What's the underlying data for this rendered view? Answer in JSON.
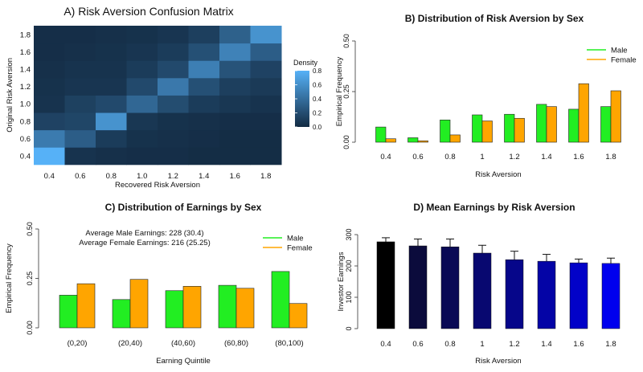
{
  "chart_data": [
    {
      "id": "A",
      "type": "heatmap",
      "title": "A) Risk Aversion Confusion Matrix",
      "xlabel": "Recovered Risk Aversion",
      "ylabel": "Original Risk Aversion",
      "x_ticks": [
        "0.4",
        "0.6",
        "0.8",
        "1.0",
        "1.2",
        "1.4",
        "1.6",
        "1.8"
      ],
      "y_ticks": [
        "0.4",
        "0.6",
        "0.8",
        "1.0",
        "1.2",
        "1.4",
        "1.6",
        "1.8"
      ],
      "legend_title": "Density",
      "legend_ticks": [
        "0.0",
        "0.2",
        "0.4",
        "0.6",
        "0.8"
      ],
      "value_range": [
        0,
        0.8
      ],
      "matrix": [
        [
          0.82,
          0.05,
          0.03,
          0.02,
          0.02,
          0.01,
          0.01,
          0.01
        ],
        [
          0.48,
          0.3,
          0.1,
          0.04,
          0.03,
          0.02,
          0.01,
          0.01
        ],
        [
          0.14,
          0.16,
          0.62,
          0.07,
          0.04,
          0.03,
          0.02,
          0.02
        ],
        [
          0.05,
          0.13,
          0.18,
          0.36,
          0.2,
          0.1,
          0.07,
          0.05
        ],
        [
          0.04,
          0.06,
          0.06,
          0.18,
          0.46,
          0.22,
          0.12,
          0.09
        ],
        [
          0.03,
          0.05,
          0.05,
          0.1,
          0.18,
          0.5,
          0.24,
          0.14
        ],
        [
          0.02,
          0.03,
          0.04,
          0.06,
          0.1,
          0.22,
          0.52,
          0.3
        ],
        [
          0.02,
          0.02,
          0.03,
          0.04,
          0.06,
          0.12,
          0.32,
          0.62
        ]
      ],
      "colors": {
        "low": "#132b43",
        "high": "#56b1f7"
      }
    },
    {
      "id": "B",
      "type": "bar",
      "title": "B) Distribution of Risk Aversion by Sex",
      "xlabel": "Risk Aversion",
      "ylabel": "Empirical Frequency",
      "categories": [
        "0.4",
        "0.6",
        "0.8",
        "1",
        "1.2",
        "1.4",
        "1.6",
        "1.8"
      ],
      "y_ticks": [
        "0.00",
        "0.25",
        "0.50"
      ],
      "ylim": [
        0,
        0.5
      ],
      "series": [
        {
          "name": "Male",
          "color": "#22ee22",
          "values": [
            0.075,
            0.022,
            0.11,
            0.135,
            0.138,
            0.187,
            0.163,
            0.176
          ]
        },
        {
          "name": "Female",
          "color": "#ffa500",
          "values": [
            0.017,
            0.007,
            0.036,
            0.105,
            0.118,
            0.176,
            0.289,
            0.254
          ]
        }
      ]
    },
    {
      "id": "C",
      "type": "bar",
      "title": "C) Distribution of Earnings by Sex",
      "xlabel": "Earning Quintile",
      "ylabel": "Empirical Frequency",
      "categories": [
        "(0,20)",
        "(20,40)",
        "(40,60)",
        "(60,80)",
        "(80,100)"
      ],
      "y_ticks": [
        "0.00",
        "0.25",
        "0.50"
      ],
      "ylim": [
        0,
        0.5
      ],
      "annotations": [
        "Average Male Earnings: 228 (30.4)",
        "Average Female Earnings: 216 (25.25)"
      ],
      "series": [
        {
          "name": "Male",
          "color": "#22ee22",
          "values": [
            0.165,
            0.143,
            0.188,
            0.215,
            0.285
          ]
        },
        {
          "name": "Female",
          "color": "#ffa500",
          "values": [
            0.223,
            0.245,
            0.21,
            0.2,
            0.123
          ]
        }
      ]
    },
    {
      "id": "D",
      "type": "bar",
      "title": "D) Mean Earnings by Risk Aversion",
      "xlabel": "Risk Aversion",
      "ylabel": "Investor Earnings",
      "categories": [
        "0.4",
        "0.6",
        "0.8",
        "1",
        "1.2",
        "1.4",
        "1.6",
        "1.8"
      ],
      "y_ticks": [
        "0",
        "100",
        "200",
        "300"
      ],
      "ylim": [
        0,
        300
      ],
      "values": [
        277,
        264,
        261,
        241,
        220,
        215,
        210,
        208
      ],
      "errors": [
        13,
        22,
        25,
        25,
        27,
        22,
        12,
        17
      ],
      "colors": [
        "#000000",
        "#0b0b3c",
        "#0a0a55",
        "#080870",
        "#06068a",
        "#0404a6",
        "#0202c8",
        "#0000ee"
      ]
    }
  ]
}
